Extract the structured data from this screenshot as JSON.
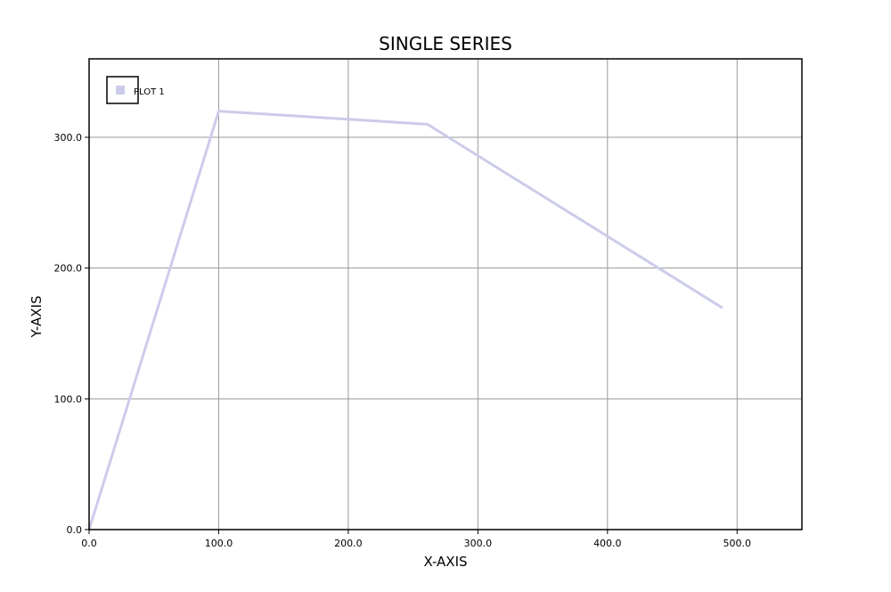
{
  "chart_data": {
    "type": "line",
    "title": "SINGLE SERIES",
    "xlabel": "X-AXIS",
    "ylabel": "Y-AXIS",
    "xlim": [
      0,
      550
    ],
    "ylim": [
      0,
      360
    ],
    "xticks": [
      0,
      100,
      200,
      300,
      400,
      500
    ],
    "xtick_labels": [
      "0.0",
      "100.0",
      "200.0",
      "300.0",
      "400.0",
      "500.0"
    ],
    "yticks": [
      0,
      100,
      200,
      300
    ],
    "ytick_labels": [
      "0.0",
      "100.0",
      "200.0",
      "300.0"
    ],
    "grid": true,
    "legend_position": "top-left",
    "series": [
      {
        "name": "PLOT 1",
        "color": "#ccccea",
        "x": [
          0,
          100,
          261,
          488
        ],
        "y": [
          0,
          320,
          310,
          170
        ]
      }
    ]
  }
}
